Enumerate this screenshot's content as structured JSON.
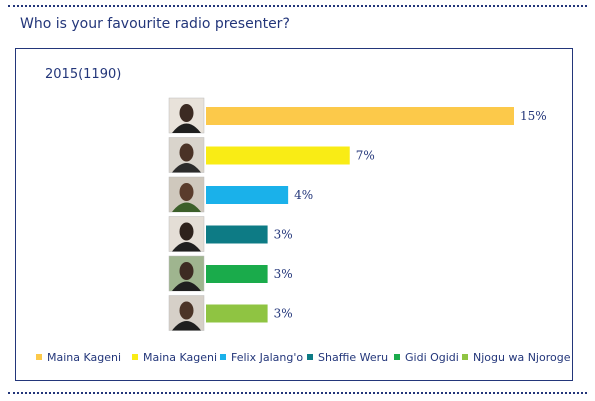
{
  "question": "Who is your favourite radio presenter?",
  "chart_data": {
    "type": "bar",
    "orientation": "horizontal",
    "title": "2015(1190)",
    "categories": [
      "Maina Kageni",
      "Maina Kageni",
      "Felix Jalang'o",
      "Shaffie Weru",
      "Gidi Ogidi",
      "Njogu wa Njoroge"
    ],
    "values": [
      15,
      7,
      4,
      3,
      3,
      3
    ],
    "value_labels": [
      "15%",
      "7%",
      "4%",
      "3%",
      "3%",
      "3%"
    ],
    "colors": [
      "#fcc94a",
      "#f9ec15",
      "#1ab1ea",
      "#0d7b85",
      "#1aab4b",
      "#8fc442"
    ],
    "unit": "%",
    "xlim": [
      0,
      15
    ],
    "grid": false,
    "legend_position": "bottom"
  }
}
